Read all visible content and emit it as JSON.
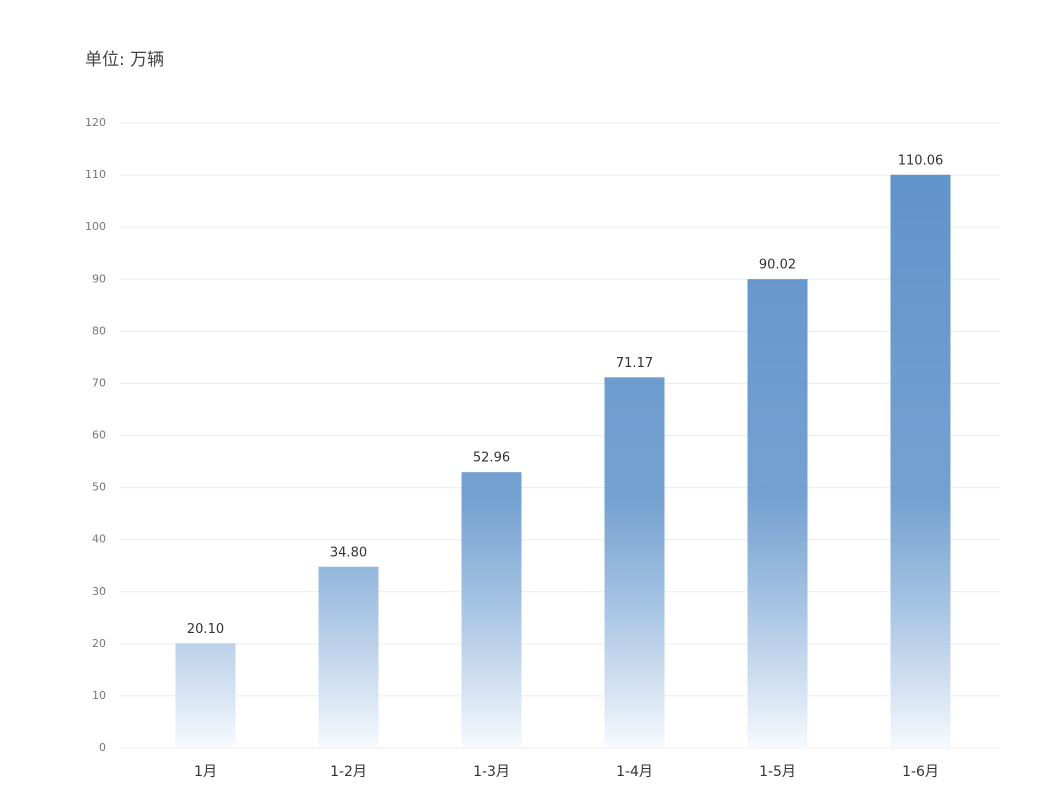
{
  "chart_data": {
    "type": "bar",
    "ylabel": "单位: 万辆",
    "categories": [
      "1月",
      "1-2月",
      "1-3月",
      "1-4月",
      "1-5月",
      "1-6月"
    ],
    "values": [
      20.1,
      34.8,
      52.96,
      71.17,
      90.02,
      110.06
    ],
    "value_labels": [
      "20.10",
      "34.80",
      "52.96",
      "71.17",
      "90.02",
      "110.06"
    ],
    "color": "#5d91c9",
    "ylim": [
      0,
      120
    ],
    "yticks": [
      0,
      10,
      20,
      30,
      40,
      50,
      60,
      70,
      80,
      90,
      100,
      110,
      120
    ],
    "grid": true
  }
}
